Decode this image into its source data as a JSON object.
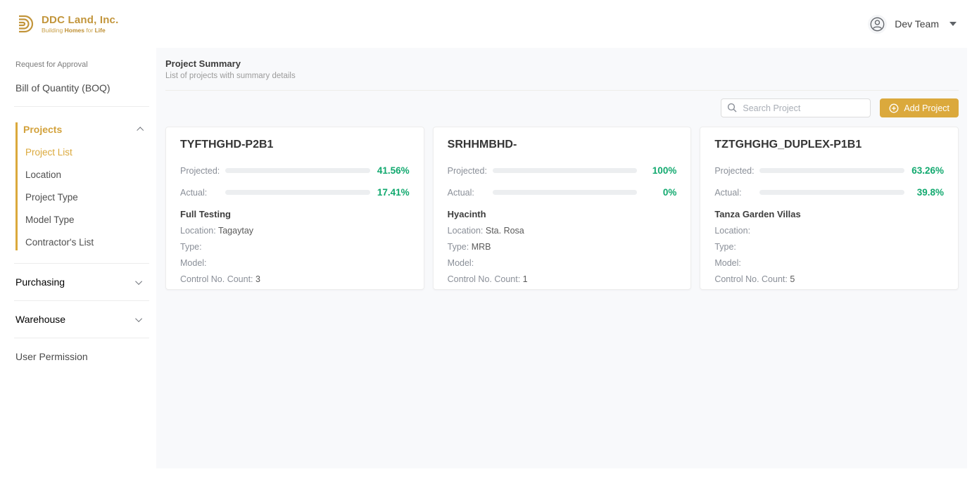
{
  "brand": {
    "name": "DDC Land, Inc.",
    "tagline_parts": [
      "Building ",
      "Homes",
      " for ",
      "Life"
    ],
    "gold": "#DBA93C"
  },
  "header": {
    "user_name": "Dev Team"
  },
  "sidebar": {
    "request_for_approval": "Request for Approval",
    "boq": "Bill of Quantity (BOQ)",
    "projects": {
      "label": "Projects",
      "items": [
        {
          "label": "Project List",
          "active": true
        },
        {
          "label": "Location",
          "active": false
        },
        {
          "label": "Project Type",
          "active": false
        },
        {
          "label": "Model Type",
          "active": false
        },
        {
          "label": "Contractor's List",
          "active": false
        }
      ]
    },
    "purchasing": "Purchasing",
    "warehouse": "Warehouse",
    "user_permission": "User Permission"
  },
  "page": {
    "title": "Project Summary",
    "subtitle": "List of projects with summary details"
  },
  "toolbar": {
    "search_placeholder": "Search Project",
    "add_project": "Add Project"
  },
  "card_labels": {
    "projected": "Projected:",
    "actual": "Actual:",
    "location": "Location:",
    "type": "Type:",
    "model": "Model:",
    "control": "Control No. Count:"
  },
  "cards": [
    {
      "title": "TYFTHGHD-P2B1",
      "projected": {
        "value": 41.56,
        "display": "41.56%"
      },
      "actual": {
        "value": 17.41,
        "display": "17.41%"
      },
      "name": "Full Testing",
      "location": "Tagaytay",
      "type": "",
      "model": "",
      "control_count": "3"
    },
    {
      "title": "SRHHMBHD-",
      "projected": {
        "value": 100,
        "display": "100%"
      },
      "actual": {
        "value": 0,
        "display": "0%"
      },
      "name": "Hyacinth",
      "location": "Sta. Rosa",
      "type": "MRB",
      "model": "",
      "control_count": "1"
    },
    {
      "title": "TZTGHGHG_DUPLEX-P1B1",
      "projected": {
        "value": 63.26,
        "display": "63.26%"
      },
      "actual": {
        "value": 39.8,
        "display": "39.8%"
      },
      "name": "Tanza Garden Villas",
      "location": "",
      "type": "",
      "model": "",
      "control_count": "5"
    }
  ],
  "colors": {
    "green": "#16B377",
    "accent_gold": "#DBA93C"
  }
}
